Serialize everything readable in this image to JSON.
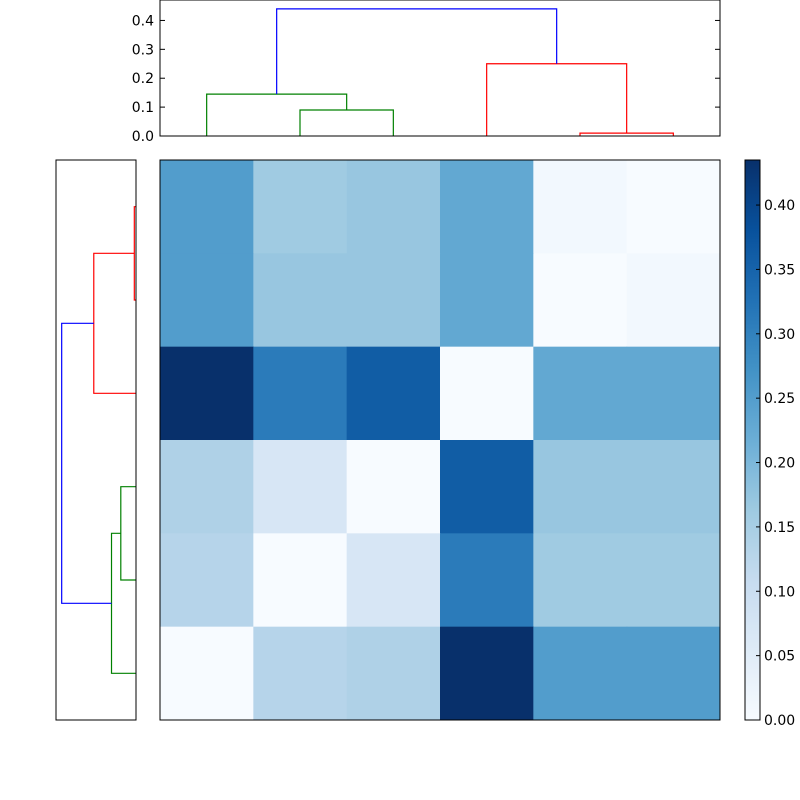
{
  "chart_data": {
    "type": "heatmap",
    "title": "",
    "xlabel": "",
    "ylabel": "",
    "colormap": "Blues",
    "colorbar": {
      "vmin": 0.0,
      "vmax": 0.435,
      "ticks": [
        0.0,
        0.05,
        0.1,
        0.15,
        0.2,
        0.25,
        0.3,
        0.35,
        0.4
      ],
      "tick_labels": [
        "0.00",
        "0.05",
        "0.10",
        "0.15",
        "0.20",
        "0.25",
        "0.30",
        "0.35",
        "0.40"
      ]
    },
    "matrix": [
      [
        0.25,
        0.16,
        0.17,
        0.23,
        0.01,
        0.0
      ],
      [
        0.25,
        0.17,
        0.17,
        0.23,
        0.0,
        0.01
      ],
      [
        0.435,
        0.31,
        0.36,
        0.0,
        0.23,
        0.23
      ],
      [
        0.14,
        0.07,
        0.0,
        0.36,
        0.17,
        0.17
      ],
      [
        0.13,
        0.0,
        0.07,
        0.31,
        0.16,
        0.16
      ],
      [
        0.0,
        0.13,
        0.14,
        0.435,
        0.25,
        0.25
      ]
    ],
    "top_dendrogram": {
      "ylim": [
        0.0,
        0.45
      ],
      "ticks": [
        0.0,
        0.1,
        0.2,
        0.3,
        0.4
      ],
      "tick_labels": [
        "0.0",
        "0.1",
        "0.2",
        "0.3",
        "0.4"
      ],
      "leaf_count": 6,
      "links": [
        {
          "left": 1,
          "right": 2,
          "left_height": 0.0,
          "right_height": 0.0,
          "height": 0.09,
          "color": "#008000"
        },
        {
          "left": 0,
          "right": 1.5,
          "left_height": 0.0,
          "right_height": 0.09,
          "height": 0.145,
          "color": "#008000"
        },
        {
          "left": 4,
          "right": 5,
          "left_height": 0.0,
          "right_height": 0.0,
          "height": 0.01,
          "color": "#ff0000"
        },
        {
          "left": 3,
          "right": 4.5,
          "left_height": 0.0,
          "right_height": 0.01,
          "height": 0.25,
          "color": "#ff0000"
        },
        {
          "left": 0.75,
          "right": 3.75,
          "left_height": 0.145,
          "right_height": 0.25,
          "height": 0.44,
          "color": "#0000ff"
        }
      ]
    },
    "left_dendrogram": {
      "xlim": [
        0.0,
        0.45
      ],
      "leaf_count": 6,
      "links": [
        {
          "left": 0,
          "right": 1,
          "left_height": 0.0,
          "right_height": 0.0,
          "height": 0.01,
          "color": "#ff0000"
        },
        {
          "left": 0.5,
          "right": 2,
          "left_height": 0.01,
          "right_height": 0.0,
          "height": 0.25,
          "color": "#ff0000"
        },
        {
          "left": 3,
          "right": 4,
          "left_height": 0.0,
          "right_height": 0.0,
          "height": 0.09,
          "color": "#008000"
        },
        {
          "left": 3.5,
          "right": 5,
          "left_height": 0.09,
          "right_height": 0.0,
          "height": 0.145,
          "color": "#008000"
        },
        {
          "left": 1.25,
          "right": 4.25,
          "left_height": 0.25,
          "right_height": 0.145,
          "height": 0.44,
          "color": "#0000ff"
        }
      ]
    }
  }
}
